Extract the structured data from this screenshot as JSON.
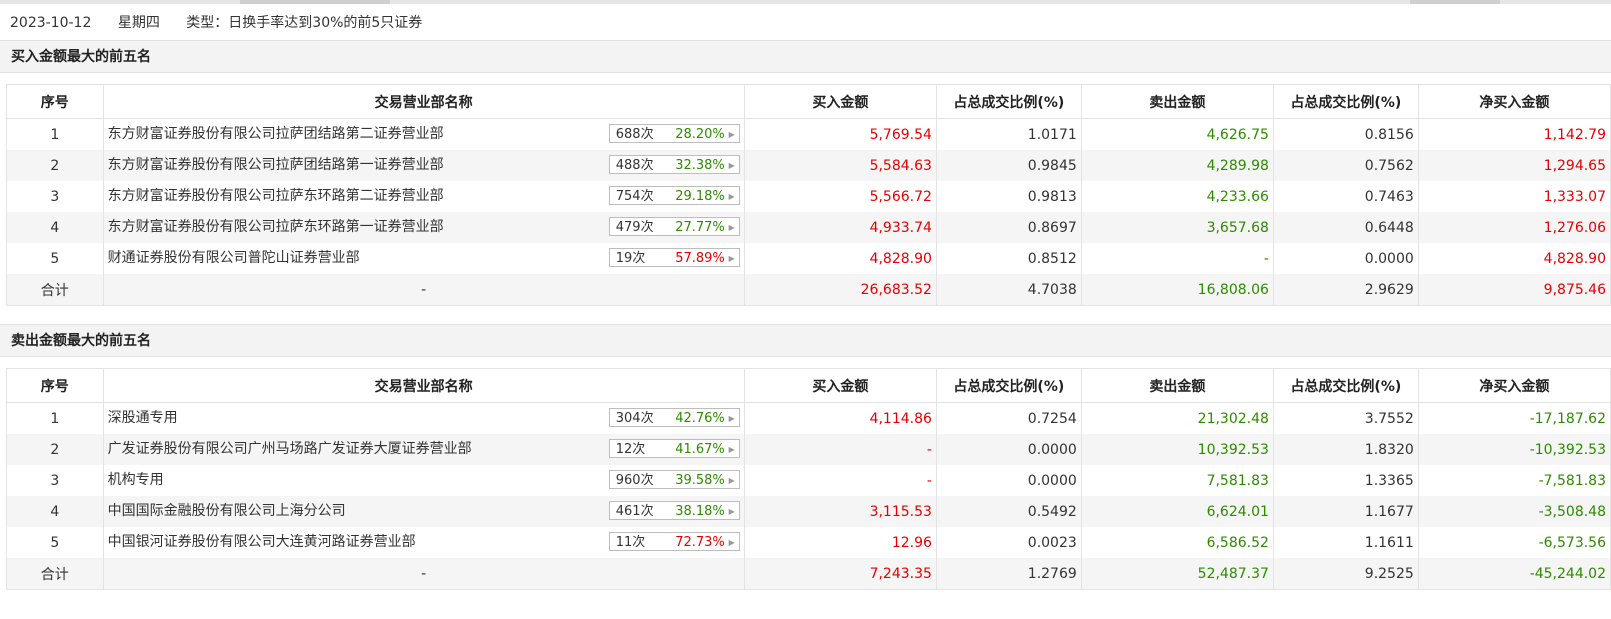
{
  "info": {
    "date": "2023-10-12",
    "weekday": "星期四",
    "type": "类型：日换手率达到30%的前5只证券"
  },
  "headers": [
    "序号",
    "交易营业部名称",
    "买入金额",
    "占总成交比例(%)",
    "卖出金额",
    "占总成交比例(%)",
    "净买入金额"
  ],
  "colors": {
    "up": "#e60000",
    "down": "#2e8b00"
  },
  "buy_section": {
    "title": "买入金额最大的前五名",
    "rows": [
      {
        "idx": "1",
        "name": "东方财富证券股份有限公司拉萨团结路第二证券营业部",
        "count": "688次",
        "rate": "28.20%",
        "rate_dir": "down",
        "buy": "5,769.54",
        "buy_pct": "1.0171",
        "sell": "4,626.75",
        "sell_pct": "0.8156",
        "net": "1,142.79",
        "net_dir": "up"
      },
      {
        "idx": "2",
        "name": "东方财富证券股份有限公司拉萨团结路第一证券营业部",
        "count": "488次",
        "rate": "32.38%",
        "rate_dir": "down",
        "buy": "5,584.63",
        "buy_pct": "0.9845",
        "sell": "4,289.98",
        "sell_pct": "0.7562",
        "net": "1,294.65",
        "net_dir": "up"
      },
      {
        "idx": "3",
        "name": "东方财富证券股份有限公司拉萨东环路第二证券营业部",
        "count": "754次",
        "rate": "29.18%",
        "rate_dir": "down",
        "buy": "5,566.72",
        "buy_pct": "0.9813",
        "sell": "4,233.66",
        "sell_pct": "0.7463",
        "net": "1,333.07",
        "net_dir": "up"
      },
      {
        "idx": "4",
        "name": "东方财富证券股份有限公司拉萨东环路第一证券营业部",
        "count": "479次",
        "rate": "27.77%",
        "rate_dir": "down",
        "buy": "4,933.74",
        "buy_pct": "0.8697",
        "sell": "3,657.68",
        "sell_pct": "0.6448",
        "net": "1,276.06",
        "net_dir": "up"
      },
      {
        "idx": "5",
        "name": "财通证券股份有限公司普陀山证券营业部",
        "count": "19次",
        "rate": "57.89%",
        "rate_dir": "up",
        "buy": "4,828.90",
        "buy_pct": "0.8512",
        "sell": "-",
        "sell_pct": "0.0000",
        "net": "4,828.90",
        "net_dir": "up"
      }
    ],
    "total": {
      "label": "合计",
      "name": "-",
      "buy": "26,683.52",
      "buy_pct": "4.7038",
      "sell": "16,808.06",
      "sell_pct": "2.9629",
      "net": "9,875.46",
      "net_dir": "up"
    }
  },
  "sell_section": {
    "title": "卖出金额最大的前五名",
    "rows": [
      {
        "idx": "1",
        "name": "深股通专用",
        "count": "304次",
        "rate": "42.76%",
        "rate_dir": "down",
        "buy": "4,114.86",
        "buy_pct": "0.7254",
        "sell": "21,302.48",
        "sell_pct": "3.7552",
        "net": "-17,187.62",
        "net_dir": "down"
      },
      {
        "idx": "2",
        "name": "广发证券股份有限公司广州马场路广发证券大厦证券营业部",
        "count": "12次",
        "rate": "41.67%",
        "rate_dir": "down",
        "buy": "-",
        "buy_pct": "0.0000",
        "sell": "10,392.53",
        "sell_pct": "1.8320",
        "net": "-10,392.53",
        "net_dir": "down"
      },
      {
        "idx": "3",
        "name": "机构专用",
        "count": "960次",
        "rate": "39.58%",
        "rate_dir": "down",
        "buy": "-",
        "buy_pct": "0.0000",
        "sell": "7,581.83",
        "sell_pct": "1.3365",
        "net": "-7,581.83",
        "net_dir": "down"
      },
      {
        "idx": "4",
        "name": "中国国际金融股份有限公司上海分公司",
        "count": "461次",
        "rate": "38.18%",
        "rate_dir": "down",
        "buy": "3,115.53",
        "buy_pct": "0.5492",
        "sell": "6,624.01",
        "sell_pct": "1.1677",
        "net": "-3,508.48",
        "net_dir": "down"
      },
      {
        "idx": "5",
        "name": "中国银河证券股份有限公司大连黄河路证券营业部",
        "count": "11次",
        "rate": "72.73%",
        "rate_dir": "up",
        "buy": "12.96",
        "buy_pct": "0.0023",
        "sell": "6,586.52",
        "sell_pct": "1.1611",
        "net": "-6,573.56",
        "net_dir": "down"
      }
    ],
    "total": {
      "label": "合计",
      "name": "-",
      "buy": "7,243.35",
      "buy_pct": "1.2769",
      "sell": "52,487.37",
      "sell_pct": "9.2525",
      "net": "-45,244.02",
      "net_dir": "down"
    }
  }
}
